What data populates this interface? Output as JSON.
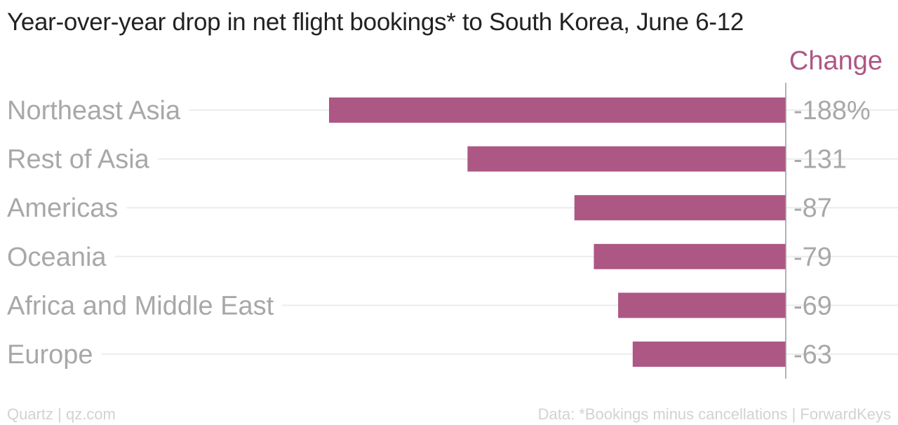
{
  "title": "Year-over-year drop in net flight bookings* to South Korea, June 6-12",
  "series_header": "Change",
  "footer": {
    "left": "Quartz | qz.com",
    "right": "Data: *Bookings minus cancellations | ForwardKeys"
  },
  "colors": {
    "bar": "#ad5785",
    "category_text": "#a8a8a8",
    "title_text": "#222222",
    "gridline": "#ececec",
    "axis": "#999999"
  },
  "chart_data": {
    "type": "bar",
    "orientation": "horizontal",
    "title": "Year-over-year drop in net flight bookings* to South Korea, June 6-12",
    "categories": [
      "Northeast Asia",
      "Rest of Asia",
      "Americas",
      "Oceania",
      "Africa and Middle East",
      "Europe"
    ],
    "series": [
      {
        "name": "Change",
        "values": [
          -188,
          -131,
          -87,
          -79,
          -69,
          -63
        ],
        "value_labels": [
          "-188%",
          "-131",
          "-87",
          "-79",
          "-69",
          "-63"
        ]
      }
    ],
    "xlim": [
      -188,
      0
    ],
    "grid": true,
    "unit": "%"
  }
}
